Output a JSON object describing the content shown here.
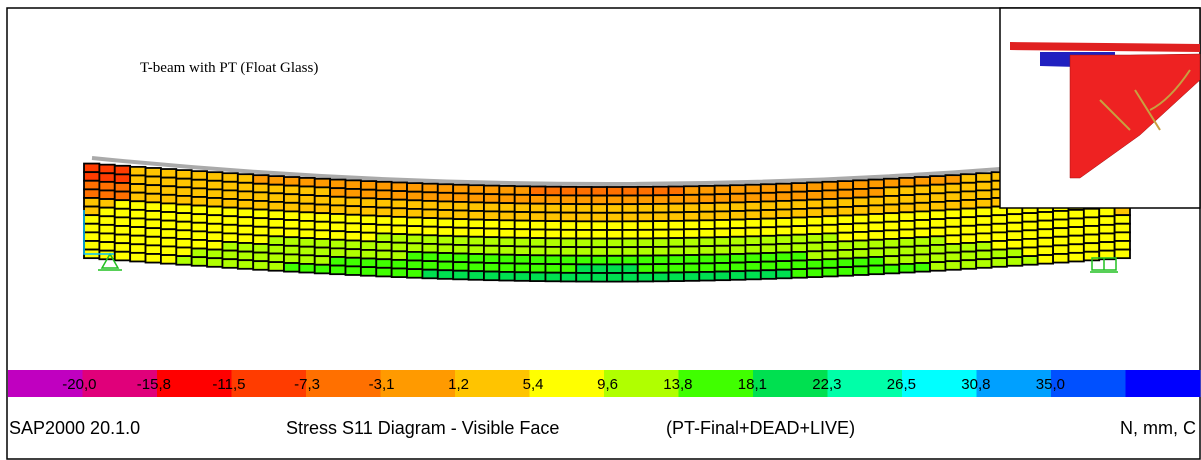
{
  "title": "T-beam with PT (Float Glass)",
  "legend": {
    "labels": [
      "-20,0",
      "-15,8",
      "-11,5",
      "-7,3",
      "-3,1",
      "1,2",
      "5,4",
      "9,6",
      "13,8",
      "18,1",
      "22,3",
      "26,5",
      "30,8",
      "35,0"
    ]
  },
  "status_bar": {
    "version": "SAP2000 20.1.0",
    "diagram": "Stress S11 Diagram - Visible Face",
    "load_case": "(PT-Final+DEAD+LIVE)",
    "units": "N, mm, C"
  }
}
